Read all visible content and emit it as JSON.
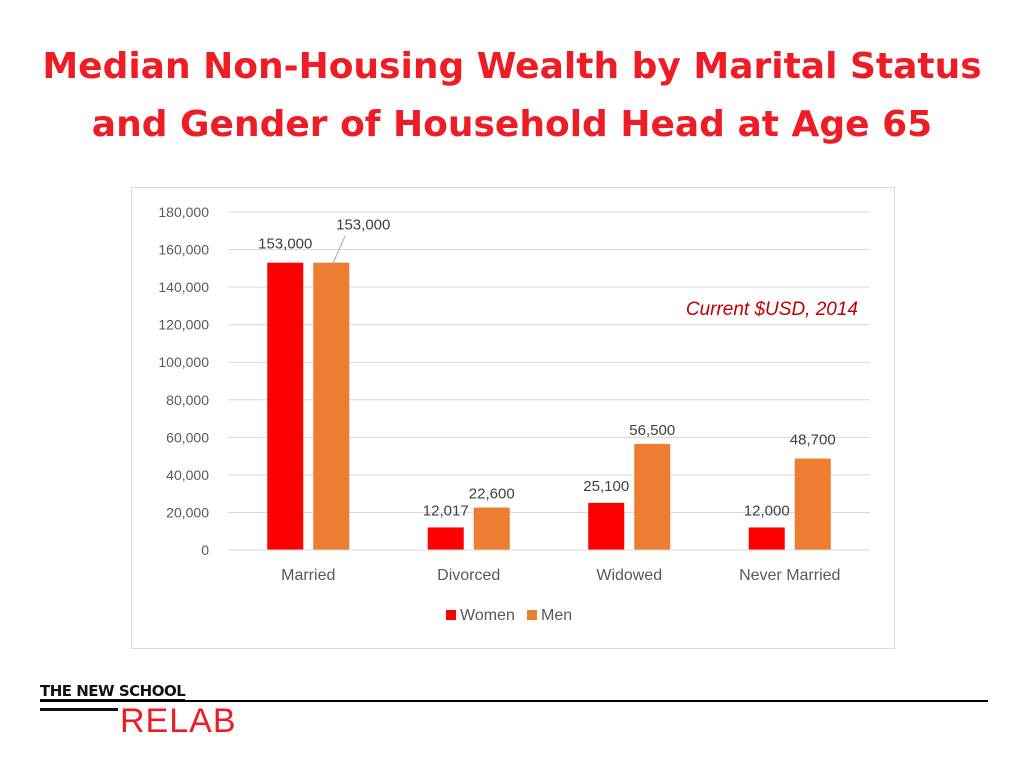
{
  "slide": {
    "title_line1": "Median Non-Housing Wealth by Marital Status",
    "title_line2": "and Gender of Household Head at Age 65"
  },
  "footer": {
    "school_name": "THE NEW SCHOOL",
    "lab_name": "RELAB"
  },
  "chart_data": {
    "type": "bar",
    "categories": [
      "Married",
      "Divorced",
      "Widowed",
      "Never Married"
    ],
    "series": [
      {
        "name": "Women",
        "values": [
          153000,
          12017,
          25100,
          12000
        ],
        "labels": [
          "153,000",
          "12,017",
          "25,100",
          "12,000"
        ],
        "color": "#ff0000"
      },
      {
        "name": "Men",
        "values": [
          153000,
          22600,
          56500,
          48700
        ],
        "labels": [
          "153,000",
          "22,600",
          "56,500",
          "48,700"
        ],
        "color": "#ed7d31"
      }
    ],
    "yticks": [
      "0",
      "20,000",
      "40,000",
      "60,000",
      "80,000",
      "100,000",
      "120,000",
      "140,000",
      "160,000",
      "180,000"
    ],
    "ylim": [
      0,
      180000
    ],
    "annotation": "Current $USD, 2014",
    "annotation_color": "#c00000",
    "grid": true,
    "legend_position": "bottom"
  }
}
